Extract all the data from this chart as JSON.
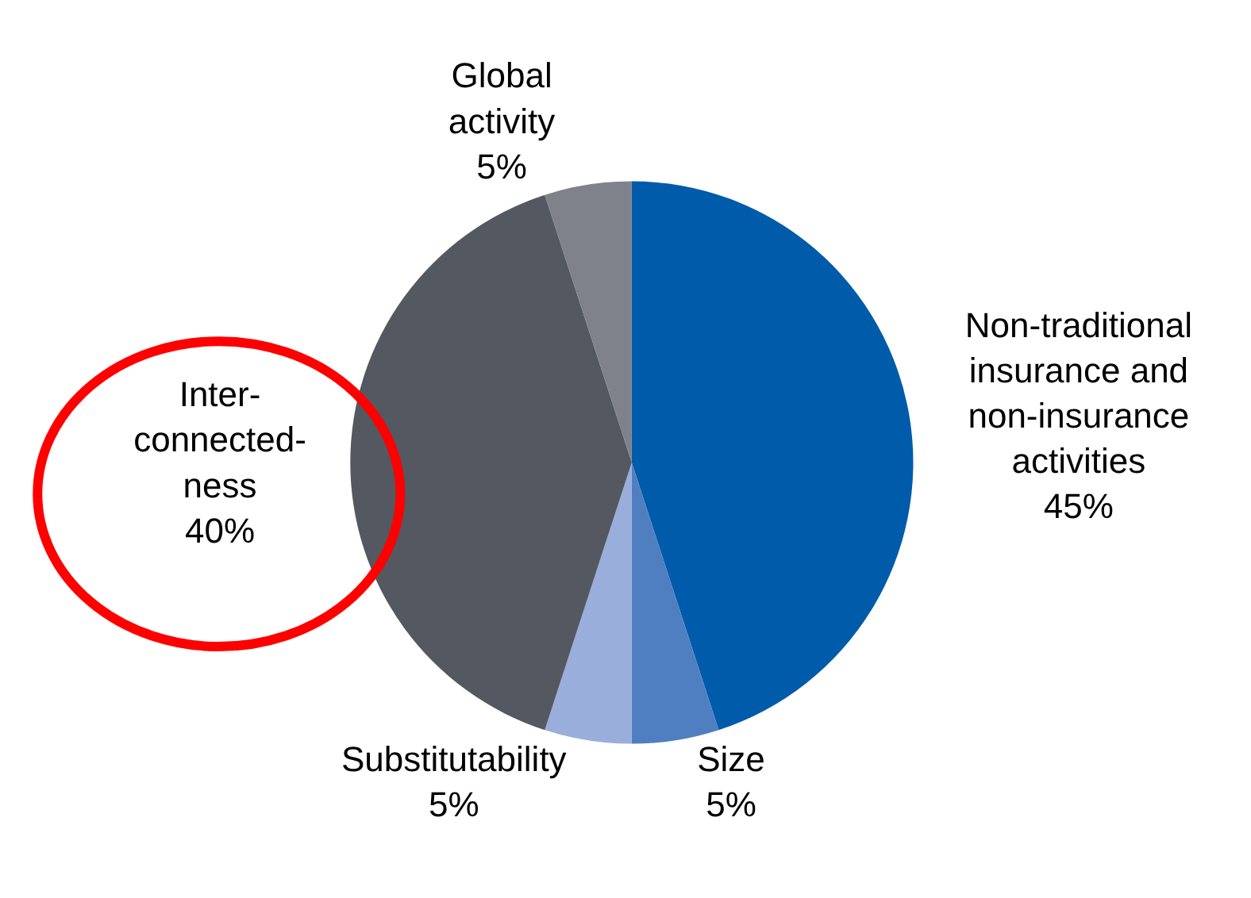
{
  "chart_data": {
    "type": "pie",
    "categories": [
      "Non-traditional\ninsurance and\nnon-insurance\nactivities",
      "Size",
      "Substitutability",
      "Inter-\nconnected-\nness",
      "Global\nactivity"
    ],
    "values": [
      45,
      5,
      5,
      40,
      5
    ],
    "value_labels": [
      "45%",
      "5%",
      "5%",
      "40%",
      "5%"
    ],
    "colors": [
      "#005baa",
      "#4f7fc0",
      "#9aaedc",
      "#545860",
      "#7f828a"
    ],
    "legend": false
  }
}
